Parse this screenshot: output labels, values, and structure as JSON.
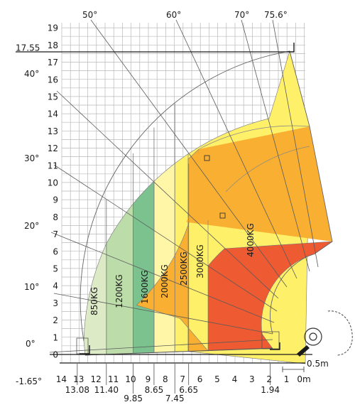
{
  "chart_data": {
    "type": "load-chart",
    "x_ticks": [
      "14",
      "13",
      "12",
      "11",
      "10",
      "9",
      "8",
      "7",
      "6",
      "5",
      "4",
      "3",
      "2",
      "1",
      "0m"
    ],
    "x_marks": [
      {
        "x": 13.08,
        "label": "13.08"
      },
      {
        "x": 11.4,
        "label": "11.40"
      },
      {
        "x": 9.85,
        "label": "9.85"
      },
      {
        "x": 8.65,
        "label": "8.65"
      },
      {
        "x": 7.45,
        "label": "7.45"
      },
      {
        "x": 6.65,
        "label": "6.65"
      },
      {
        "x": 1.94,
        "label": "1.94"
      }
    ],
    "y_ticks": [
      "0",
      "1",
      "2",
      "3",
      "4",
      "5",
      "6",
      "7",
      "8",
      "9",
      "10",
      "11",
      "12",
      "13",
      "14",
      "15",
      "16",
      "17",
      "18",
      "19"
    ],
    "y_marks": [
      {
        "y": 17.55,
        "label": "17.55"
      },
      {
        "y": -1.65,
        "label": "-1.65°"
      }
    ],
    "angles": [
      {
        "label": "0°",
        "value": 0
      },
      {
        "label": "10°",
        "value": 10
      },
      {
        "label": "20°",
        "value": 20
      },
      {
        "label": "30°",
        "value": 30
      },
      {
        "label": "40°",
        "value": 40
      },
      {
        "label": "50°",
        "value": 50
      },
      {
        "label": "60°",
        "value": 60
      },
      {
        "label": "70°",
        "value": 70
      },
      {
        "label": "75.6°",
        "value": 75.6
      }
    ],
    "zones": [
      {
        "label": "850KG",
        "x_from": 13.08,
        "x_to": 11.4,
        "color": "#dcebc5"
      },
      {
        "label": "1200KG",
        "x_from": 11.4,
        "x_to": 9.85,
        "color": "#bcdcaa"
      },
      {
        "label": "1600KG",
        "x_from": 9.85,
        "x_to": 8.65,
        "color": "#7cc28e"
      },
      {
        "label": "2000KG",
        "x_from": 8.65,
        "x_to": 7.45,
        "color": "#fff6a8"
      },
      {
        "label": "2500KG",
        "x_from": 7.45,
        "x_to": 6.65,
        "color": "#fff06a"
      },
      {
        "label": "3000KG",
        "x_from": 6.65,
        "x_to": 5.4,
        "color": "#f9b032"
      },
      {
        "label": "4000KG",
        "color": "#ee5a32"
      }
    ],
    "scale_label": "0.5m"
  }
}
